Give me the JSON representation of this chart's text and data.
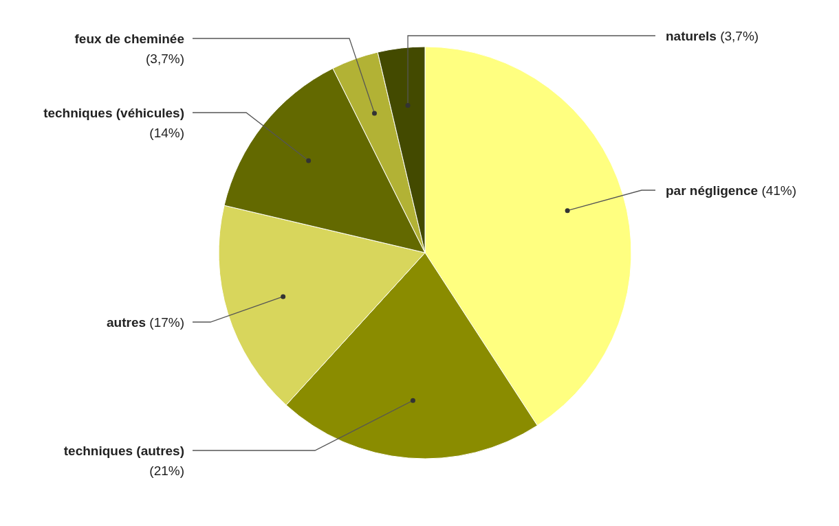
{
  "chart_data": {
    "type": "pie",
    "categories": [
      "par négligence",
      "techniques (autres)",
      "autres",
      "techniques (véhicules)",
      "feux de cheminée",
      "naturels"
    ],
    "values": [
      41,
      21,
      17,
      14,
      3.7,
      3.7
    ],
    "value_labels": [
      "(41%)",
      "(21%)",
      "(17%)",
      "(14%)",
      "(3,7%)",
      "(3,7%)"
    ],
    "colors": [
      "#ffff80",
      "#8a8c00",
      "#d8d65c",
      "#636900",
      "#b2b235",
      "#434a00"
    ]
  }
}
